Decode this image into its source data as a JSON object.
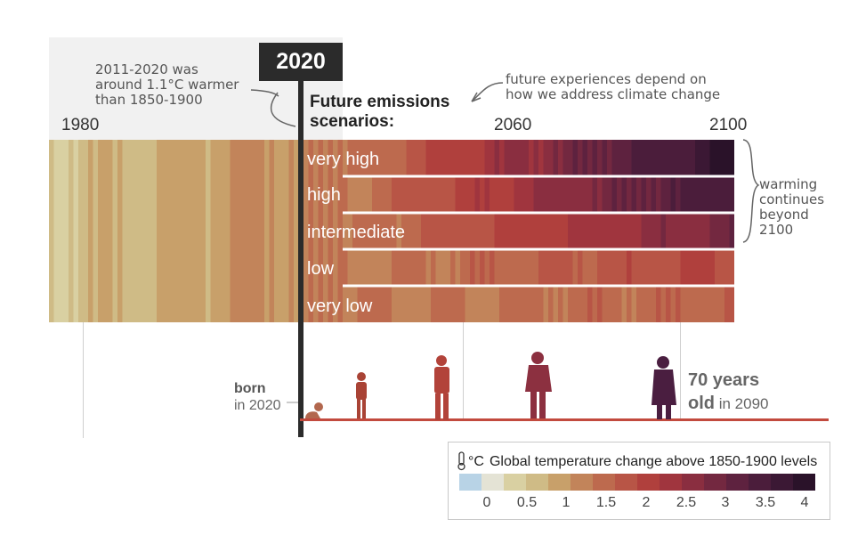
{
  "header": {
    "badge_year": "2020",
    "future_title_line1": "Future emissions",
    "future_title_line2": "scenarios:",
    "note_past_line1": "2011-2020 was",
    "note_past_line2": "around 1.1°C warmer",
    "note_past_line3": "than 1850-1900",
    "note_future_line1": "future experiences depend on",
    "note_future_line2": "how we address climate change",
    "note_beyond_line1": "warming",
    "note_beyond_line2": "continues",
    "note_beyond_line3": "beyond",
    "note_beyond_line4": "2100"
  },
  "axis": {
    "year_labels": [
      "1980",
      "2060",
      "2100"
    ]
  },
  "people": {
    "born_bold": "born",
    "born_rest": "in 2020",
    "age_bold_line1": "70 years",
    "age_bold_line2": "old",
    "age_rest": " in 2090",
    "figure_colors": [
      "#a94335",
      "#b2433a",
      "#9a3a3c",
      "#6e2a46",
      "#4a1e40"
    ]
  },
  "legend": {
    "thermometer_icon": "thermometer-icon",
    "unit": "°C",
    "title": "Global temperature change above 1850-1900 levels",
    "ticks": [
      "0",
      "0.5",
      "1",
      "1.5",
      "2",
      "2.5",
      "3",
      "3.5",
      "4"
    ],
    "colors": [
      "#b8d3e6",
      "#e4e3d5",
      "#d9d0a2",
      "#cfbb86",
      "#c8a06a",
      "#c2845a",
      "#bd6a4e",
      "#b85546",
      "#b0403d",
      "#a0353e",
      "#8a2e40",
      "#732840",
      "#5e223f",
      "#4b1d3b",
      "#3b1834",
      "#2a1229"
    ]
  },
  "chart_data": {
    "type": "heatmap",
    "title": "",
    "x_range": [
      1960,
      2100
    ],
    "now_year": 2020,
    "value_unit": "°C above 1850-1900",
    "scenarios": [
      {
        "name": "very high",
        "warming_2100": 4.0
      },
      {
        "name": "high",
        "warming_2100": 3.6
      },
      {
        "name": "intermediate",
        "warming_2100": 2.8
      },
      {
        "name": "low",
        "warming_2100": 1.8
      },
      {
        "name": "very low",
        "warming_2100": 1.4
      }
    ],
    "historical_warming_2011_2020": 1.1
  }
}
